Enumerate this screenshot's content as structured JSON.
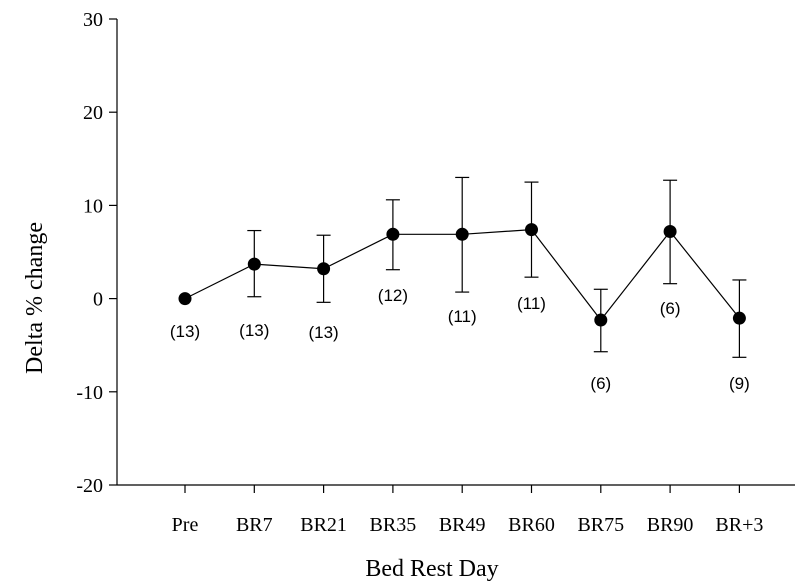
{
  "chart_data": {
    "type": "line",
    "categories": [
      "Pre",
      "BR7",
      "BR21",
      "BR35",
      "BR49",
      "BR60",
      "BR75",
      "BR90",
      "BR+3"
    ],
    "series": [
      {
        "values": [
          0,
          3.7,
          3.2,
          6.9,
          6.9,
          7.4,
          -2.3,
          7.2,
          -2.1
        ],
        "error_upper": [
          0,
          7.3,
          6.8,
          10.6,
          13.0,
          12.5,
          1.0,
          12.7,
          2.0
        ],
        "error_lower": [
          0,
          0.2,
          -0.4,
          3.1,
          0.7,
          2.3,
          -5.7,
          1.6,
          -6.3
        ],
        "n_labels": [
          "(13)",
          "(13)",
          "(13)",
          "(12)",
          "(11)",
          "(11)",
          "(6)",
          "(6)",
          "(9)"
        ],
        "n_label_position": [
          "below",
          "below",
          "below",
          "below",
          "below",
          "below",
          "below",
          "below",
          "below"
        ]
      }
    ],
    "xlabel": "Bed Rest Day",
    "ylabel": "Delta % change",
    "ylim": [
      -20,
      30
    ],
    "yticks": [
      "30",
      "20",
      "10",
      "0",
      "-10",
      "-20"
    ],
    "grid": false,
    "color": "#000000"
  }
}
